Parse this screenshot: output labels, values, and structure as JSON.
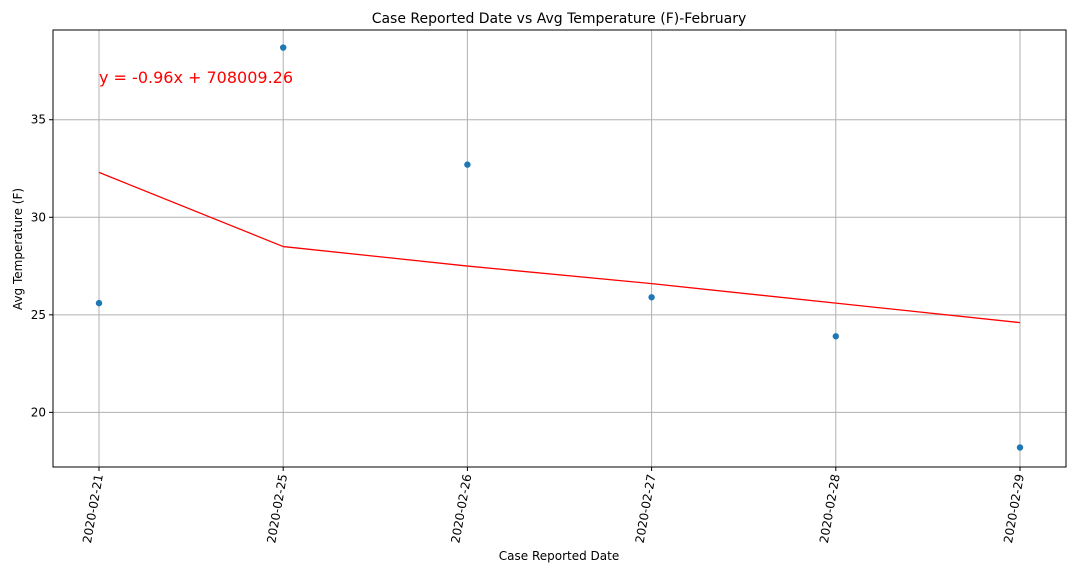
{
  "chart_data": {
    "type": "scatter",
    "title": "Case Reported Date vs Avg Temperature (F)-February",
    "xlabel": "Case Reported Date",
    "ylabel": "Avg Temperature (F)",
    "categories": [
      "2020-02-21",
      "2020-02-25",
      "2020-02-26",
      "2020-02-27",
      "2020-02-28",
      "2020-02-29"
    ],
    "y_ticks": [
      20,
      25,
      30,
      35
    ],
    "ylim": [
      17.2,
      39.6
    ],
    "grid": true,
    "series": [
      {
        "kind": "scatter",
        "values": [
          25.6,
          38.7,
          32.7,
          25.9,
          23.9,
          18.2
        ],
        "color": "#1f77b4"
      },
      {
        "kind": "line",
        "values": [
          32.3,
          28.5,
          27.5,
          26.6,
          25.6,
          24.6
        ],
        "color": "#ff0000"
      }
    ],
    "annotation": {
      "text": "y = -0.96x + 708009.26",
      "color": "#ff0000"
    }
  }
}
